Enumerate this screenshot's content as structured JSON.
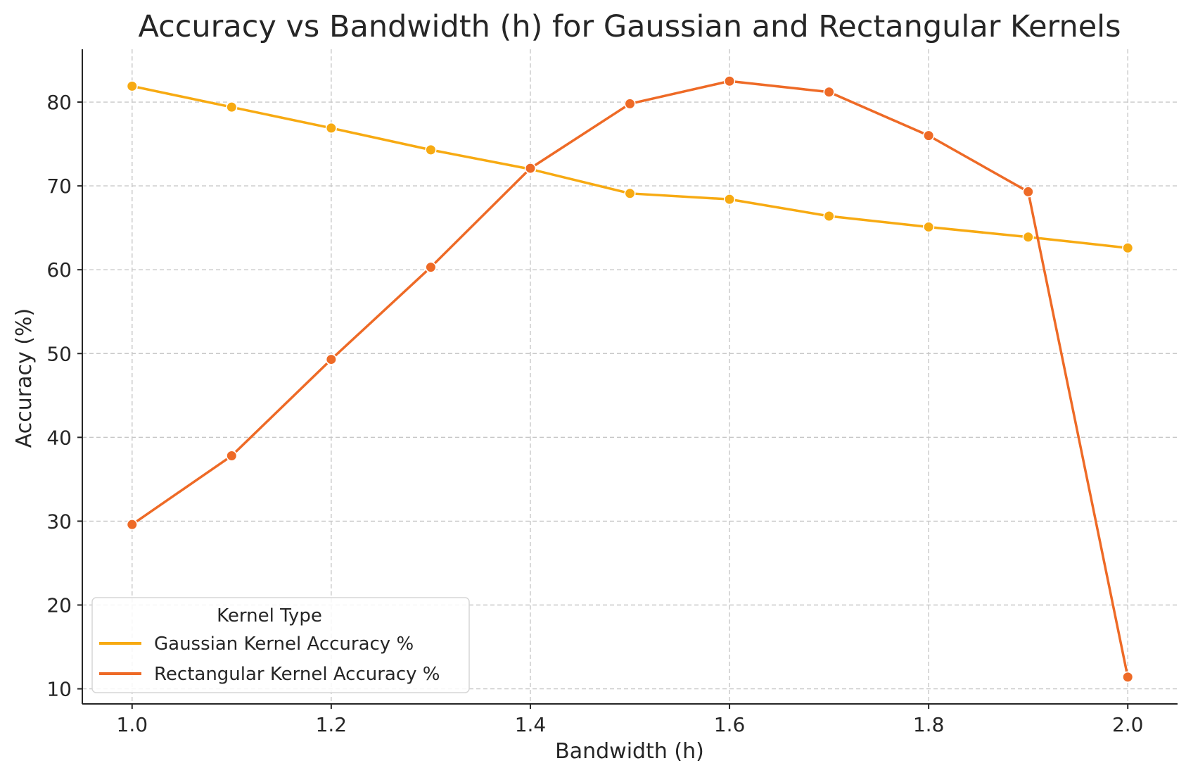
{
  "chart_data": {
    "type": "line",
    "title": "Accuracy vs Bandwidth (h) for Gaussian and Rectangular Kernels",
    "xlabel": "Bandwidth (h)",
    "ylabel": "Accuracy (%)",
    "x": [
      1.0,
      1.1,
      1.2,
      1.3,
      1.4,
      1.5,
      1.6,
      1.7,
      1.8,
      1.9,
      2.0
    ],
    "xlim": [
      0.95,
      2.05
    ],
    "ylim": [
      8.2,
      86.3
    ],
    "x_ticks": [
      1.0,
      1.2,
      1.4,
      1.6,
      1.8,
      2.0
    ],
    "x_tick_labels": [
      "1.0",
      "1.2",
      "1.4",
      "1.6",
      "1.8",
      "2.0"
    ],
    "y_ticks": [
      10,
      20,
      30,
      40,
      50,
      60,
      70,
      80
    ],
    "y_tick_labels": [
      "10",
      "20",
      "30",
      "40",
      "50",
      "60",
      "70",
      "80"
    ],
    "grid": true,
    "legend": {
      "title": "Kernel Type",
      "placement": "lower-left"
    },
    "series": [
      {
        "name": "Gaussian Kernel Accuracy %",
        "color": "#f7aa12",
        "values": [
          81.9,
          79.4,
          76.9,
          74.3,
          72.0,
          69.1,
          68.4,
          66.4,
          65.1,
          63.9,
          62.6
        ]
      },
      {
        "name": "Rectangular Kernel Accuracy %",
        "color": "#ee6a26",
        "values": [
          29.6,
          37.8,
          49.3,
          60.3,
          72.1,
          79.8,
          82.5,
          81.2,
          76.0,
          69.3,
          11.4
        ]
      }
    ]
  }
}
